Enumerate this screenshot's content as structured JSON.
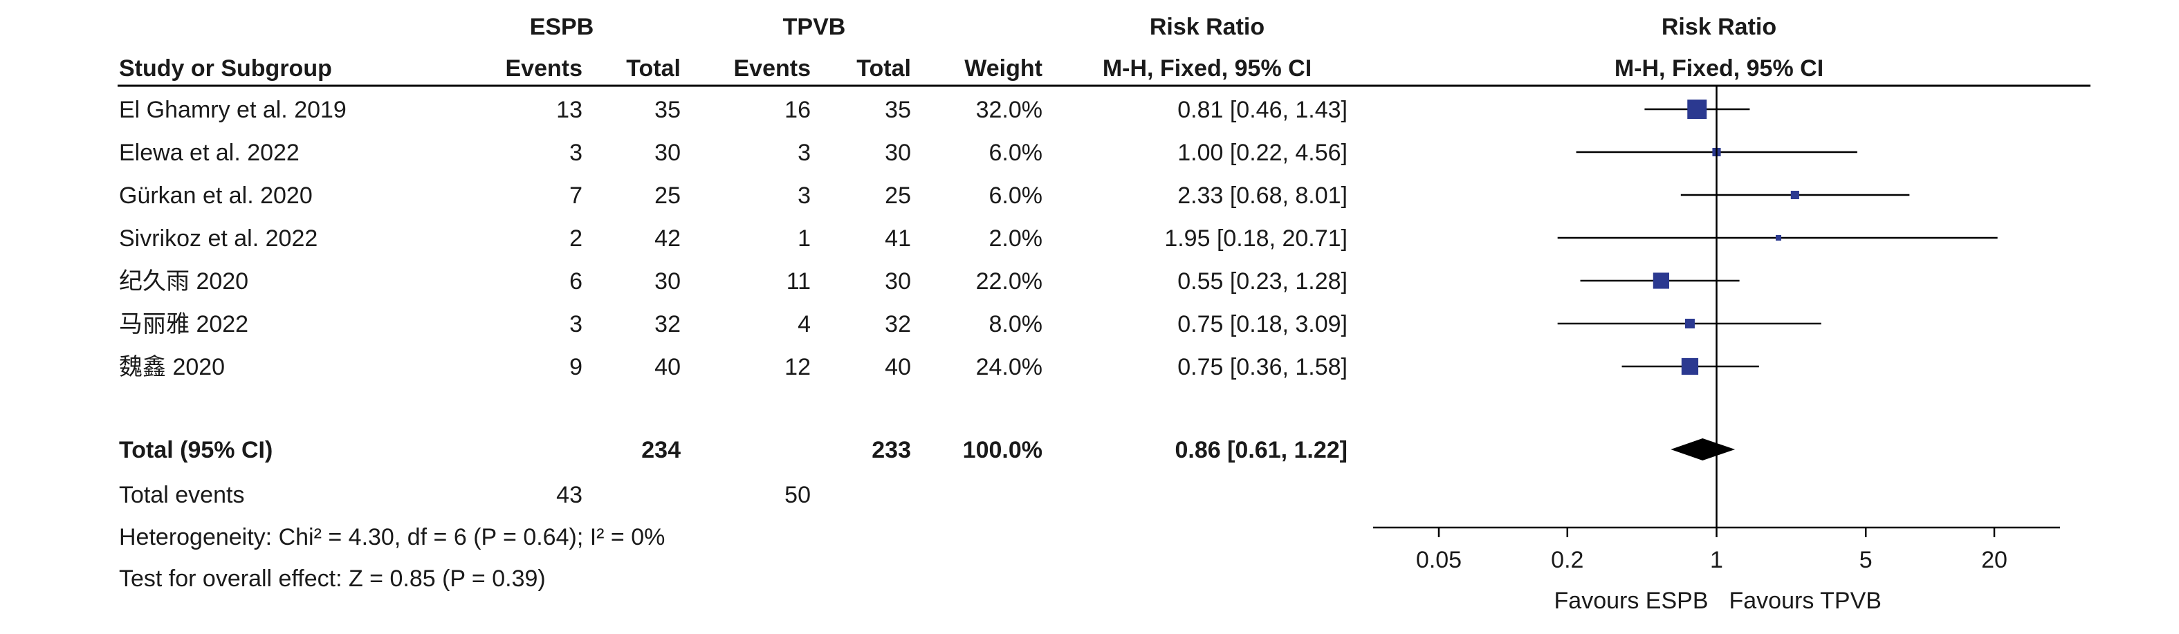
{
  "header": {
    "group1": "ESPB",
    "group2": "TPVB",
    "study_col": "Study or Subgroup",
    "events": "Events",
    "total": "Total",
    "weight": "Weight",
    "rr_title": "Risk Ratio",
    "rr_method": "M-H, Fixed, 95% CI",
    "plot_title": "Risk Ratio",
    "plot_method": "M-H, Fixed, 95% CI"
  },
  "footer": {
    "total_events_label": "Total events",
    "total_events_espb": "43",
    "total_events_tpvb": "50",
    "heterogeneity": "Heterogeneity: Chi² = 4.30, df = 6 (P = 0.64); I² = 0%",
    "overall_effect": "Test for overall effect: Z = 0.85 (P = 0.39)"
  },
  "chart_data": {
    "type": "forest",
    "scale": "log",
    "xlim": [
      0.05,
      20
    ],
    "xticks": [
      "0.05",
      "0.2",
      "1",
      "5",
      "20"
    ],
    "null_value": 1,
    "favours_left": "Favours ESPB",
    "favours_right": "Favours TPVB",
    "studies": [
      {
        "label": "El Ghamry et al. 2019",
        "espb_events": "13",
        "espb_total": "35",
        "tpvb_events": "16",
        "tpvb_total": "35",
        "weight": "32.0%",
        "rr_text": "0.81 [0.46, 1.43]",
        "rr": 0.81,
        "lo": 0.46,
        "hi": 1.43,
        "w": 32.0
      },
      {
        "label": "Elewa et al. 2022",
        "espb_events": "3",
        "espb_total": "30",
        "tpvb_events": "3",
        "tpvb_total": "30",
        "weight": "6.0%",
        "rr_text": "1.00 [0.22, 4.56]",
        "rr": 1.0,
        "lo": 0.22,
        "hi": 4.56,
        "w": 6.0
      },
      {
        "label": "Gürkan et al. 2020",
        "espb_events": "7",
        "espb_total": "25",
        "tpvb_events": "3",
        "tpvb_total": "25",
        "weight": "6.0%",
        "rr_text": "2.33 [0.68, 8.01]",
        "rr": 2.33,
        "lo": 0.68,
        "hi": 8.01,
        "w": 6.0
      },
      {
        "label": "Sivrikoz et al. 2022",
        "espb_events": "2",
        "espb_total": "42",
        "tpvb_events": "1",
        "tpvb_total": "41",
        "weight": "2.0%",
        "rr_text": "1.95 [0.18, 20.71]",
        "rr": 1.95,
        "lo": 0.18,
        "hi": 20.71,
        "w": 2.0
      },
      {
        "label": "纪久雨 2020",
        "espb_events": "6",
        "espb_total": "30",
        "tpvb_events": "11",
        "tpvb_total": "30",
        "weight": "22.0%",
        "rr_text": "0.55 [0.23, 1.28]",
        "rr": 0.55,
        "lo": 0.23,
        "hi": 1.28,
        "w": 22.0
      },
      {
        "label": "马丽雅 2022",
        "espb_events": "3",
        "espb_total": "32",
        "tpvb_events": "4",
        "tpvb_total": "32",
        "weight": "8.0%",
        "rr_text": "0.75 [0.18, 3.09]",
        "rr": 0.75,
        "lo": 0.18,
        "hi": 3.09,
        "w": 8.0
      },
      {
        "label": "魏鑫 2020",
        "espb_events": "9",
        "espb_total": "40",
        "tpvb_events": "12",
        "tpvb_total": "40",
        "weight": "24.0%",
        "rr_text": "0.75 [0.36, 1.58]",
        "rr": 0.75,
        "lo": 0.36,
        "hi": 1.58,
        "w": 24.0
      }
    ],
    "total": {
      "label": "Total (95% CI)",
      "espb_total": "234",
      "tpvb_total": "233",
      "weight": "100.0%",
      "rr_text": "0.86 [0.61, 1.22]",
      "rr": 0.86,
      "lo": 0.61,
      "hi": 1.22
    },
    "colors": {
      "marker": "#2b3990",
      "diamond": "#000000",
      "line": "#000000"
    }
  }
}
